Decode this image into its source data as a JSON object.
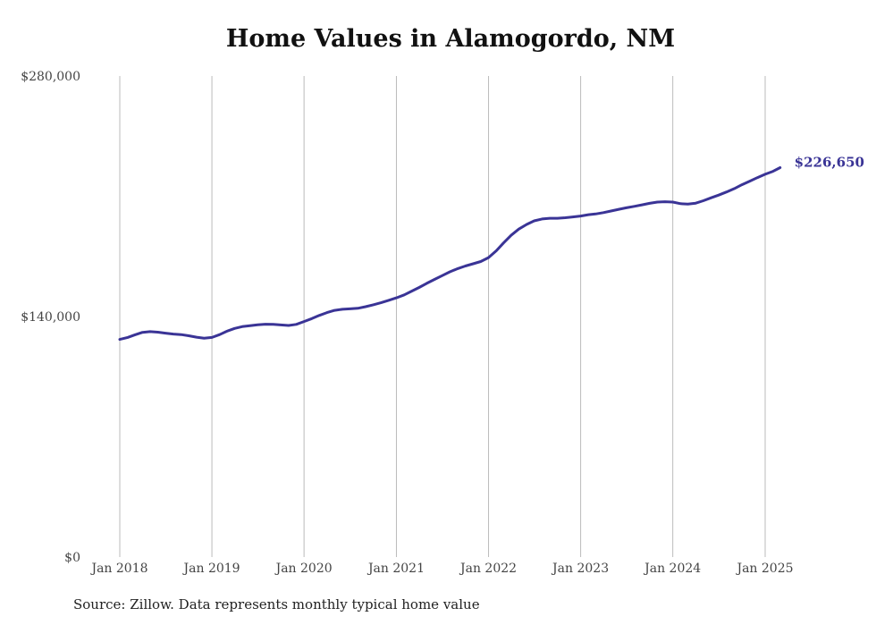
{
  "source": "Source: Zillow. Data represents monthly typical home value",
  "colors": {
    "line": "#3a3496",
    "grid": "#bbbbbb",
    "text": "#444444"
  },
  "chart_data": {
    "type": "line",
    "title": "Home Values in Alamogordo, NM",
    "xlabel": "",
    "ylabel": "",
    "ylim": [
      0,
      280000
    ],
    "yticks": [
      0,
      140000,
      280000
    ],
    "ytick_labels": [
      "$0",
      "$140,000",
      "$280,000"
    ],
    "xticks": [
      "2018-01",
      "2019-01",
      "2020-01",
      "2021-01",
      "2022-01",
      "2023-01",
      "2024-01",
      "2025-01"
    ],
    "xtick_labels": [
      "Jan 2018",
      "Jan 2019",
      "Jan 2020",
      "Jan 2021",
      "Jan 2022",
      "Jan 2023",
      "Jan 2024",
      "Jan 2025"
    ],
    "grid": "vertical",
    "legend": "none",
    "end_label": "$226,650",
    "series": [
      {
        "x": [
          "2018-01",
          "2018-02",
          "2018-03",
          "2018-04",
          "2018-05",
          "2018-06",
          "2018-07",
          "2018-08",
          "2018-09",
          "2018-10",
          "2018-11",
          "2018-12",
          "2019-01",
          "2019-02",
          "2019-03",
          "2019-04",
          "2019-05",
          "2019-06",
          "2019-07",
          "2019-08",
          "2019-09",
          "2019-10",
          "2019-11",
          "2019-12",
          "2020-01",
          "2020-02",
          "2020-03",
          "2020-04",
          "2020-05",
          "2020-06",
          "2020-07",
          "2020-08",
          "2020-09",
          "2020-10",
          "2020-11",
          "2020-12",
          "2021-01",
          "2021-02",
          "2021-03",
          "2021-04",
          "2021-05",
          "2021-06",
          "2021-07",
          "2021-08",
          "2021-09",
          "2021-10",
          "2021-11",
          "2021-12",
          "2022-01",
          "2022-02",
          "2022-03",
          "2022-04",
          "2022-05",
          "2022-06",
          "2022-07",
          "2022-08",
          "2022-09",
          "2022-10",
          "2022-11",
          "2022-12",
          "2023-01",
          "2023-02",
          "2023-03",
          "2023-04",
          "2023-05",
          "2023-06",
          "2023-07",
          "2023-08",
          "2023-09",
          "2023-10",
          "2023-11",
          "2023-12",
          "2024-01",
          "2024-02",
          "2024-03",
          "2024-04",
          "2024-05",
          "2024-06",
          "2024-07",
          "2024-08",
          "2024-09",
          "2024-10",
          "2024-11",
          "2024-12",
          "2025-01",
          "2025-02",
          "2025-03"
        ],
        "values": [
          126700,
          127800,
          129300,
          130800,
          131200,
          130900,
          130300,
          129800,
          129500,
          128800,
          128000,
          127400,
          127800,
          129500,
          131400,
          133100,
          134100,
          134700,
          135200,
          135500,
          135400,
          135100,
          134800,
          135400,
          137100,
          138800,
          140600,
          142300,
          143600,
          144200,
          144500,
          144800,
          145700,
          146800,
          148000,
          149400,
          150900,
          152600,
          154600,
          156900,
          159300,
          161600,
          163800,
          166000,
          167900,
          169400,
          170700,
          172000,
          174300,
          178300,
          182800,
          187300,
          190900,
          193600,
          195700,
          196800,
          197200,
          197200,
          197500,
          198000,
          198500,
          199300,
          199700,
          200500,
          201400,
          202400,
          203300,
          204100,
          205000,
          205900,
          206600,
          206800,
          206600,
          205700,
          205400,
          206000,
          207400,
          209100,
          210700,
          212500,
          214500,
          216700,
          218800,
          220800,
          222800,
          224500,
          226650
        ]
      }
    ]
  }
}
